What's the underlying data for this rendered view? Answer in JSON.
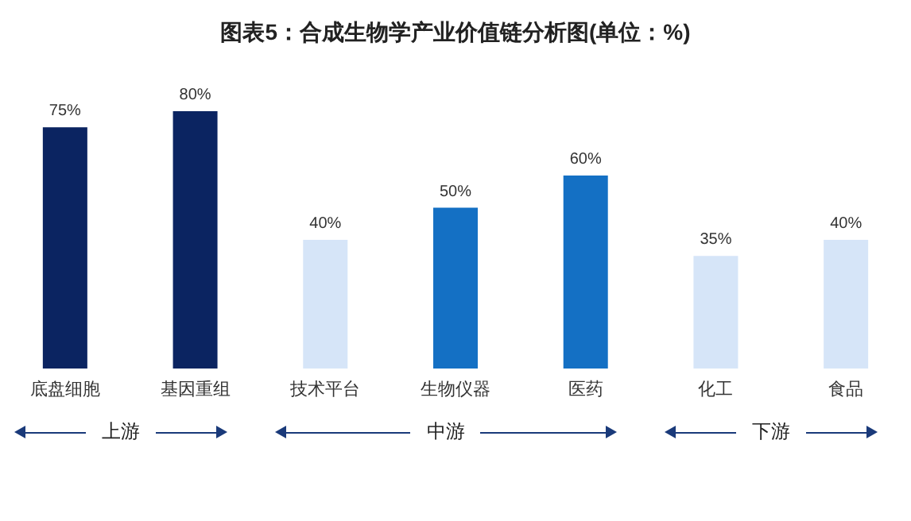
{
  "chart_data": {
    "type": "bar",
    "title": "图表5：合成生物学产业价值链分析图(单位：%)",
    "categories": [
      "底盘细胞",
      "基因重组",
      "技术平台",
      "生物仪器",
      "医药",
      "化工",
      "食品"
    ],
    "values": [
      75,
      80,
      40,
      50,
      60,
      35,
      40
    ],
    "colors": [
      "#0b2461",
      "#0b2461",
      "#d6e5f8",
      "#1470c4",
      "#1470c4",
      "#d6e5f8",
      "#d6e5f8"
    ],
    "value_labels": [
      "75%",
      "80%",
      "40%",
      "50%",
      "60%",
      "35%",
      "40%"
    ],
    "annotations": [
      "上游",
      "中游",
      "下游"
    ]
  }
}
